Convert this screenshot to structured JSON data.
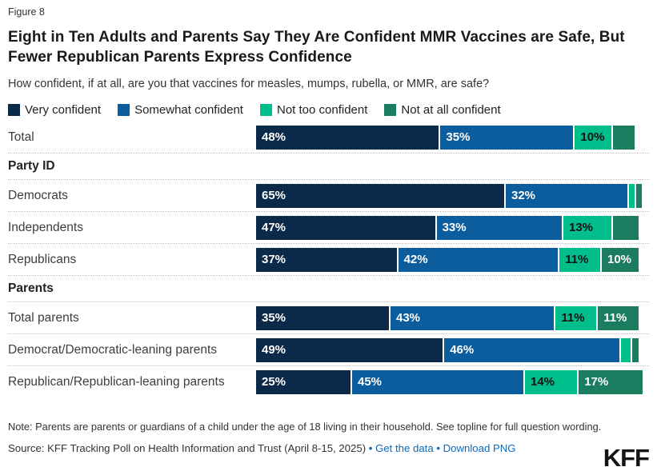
{
  "figure_label": "Figure 8",
  "title": "Eight in Ten Adults and Parents Say They Are Confident MMR Vaccines are Safe, But Fewer Republican Parents Express Confidence",
  "subtitle": "How confident, if at all, are you that vaccines for measles, mumps, rubella, or MMR, are safe?",
  "legend": [
    {
      "label": "Very confident",
      "color": "#0b2949",
      "text_color": "#ffffff"
    },
    {
      "label": "Somewhat confident",
      "color": "#0b5d9d",
      "text_color": "#ffffff"
    },
    {
      "label": "Not too confident",
      "color": "#00bd8c",
      "text_color": "#111111"
    },
    {
      "label": "Not at all confident",
      "color": "#1c7c60",
      "text_color": "#ffffff"
    }
  ],
  "chart_data": {
    "type": "bar",
    "stacked": true,
    "orientation": "horizontal",
    "unit": "%",
    "xlim": [
      0,
      100
    ],
    "value_label_min": 10,
    "categories": [
      "Total",
      "Democrats",
      "Independents",
      "Republicans",
      "Total parents",
      "Democrat/Democratic-leaning parents",
      "Republican/Republican-leaning parents"
    ],
    "groups": [
      {
        "label": "",
        "categories": [
          0
        ]
      },
      {
        "label": "Party ID",
        "categories": [
          1,
          2,
          3
        ]
      },
      {
        "label": "Parents",
        "categories": [
          4,
          5,
          6
        ]
      }
    ],
    "series": [
      {
        "name": "Very confident",
        "values": [
          48,
          65,
          47,
          37,
          35,
          49,
          25
        ]
      },
      {
        "name": "Somewhat confident",
        "values": [
          35,
          32,
          33,
          42,
          43,
          46,
          45
        ]
      },
      {
        "name": "Not too confident",
        "values": [
          10,
          2,
          13,
          11,
          11,
          3,
          14
        ]
      },
      {
        "name": "Not at all confident",
        "values": [
          6,
          1,
          7,
          10,
          11,
          2,
          17
        ]
      }
    ]
  },
  "note": "Note: Parents are parents or guardians of a child under the age of 18 living in their household. See topline for full question wording.",
  "source": {
    "text": "Source: KFF Tracking Poll on Health Information and Trust (April 8-15, 2025)",
    "separator": "•",
    "links": [
      "Get the data",
      "Download PNG"
    ]
  },
  "logo": "KFF"
}
